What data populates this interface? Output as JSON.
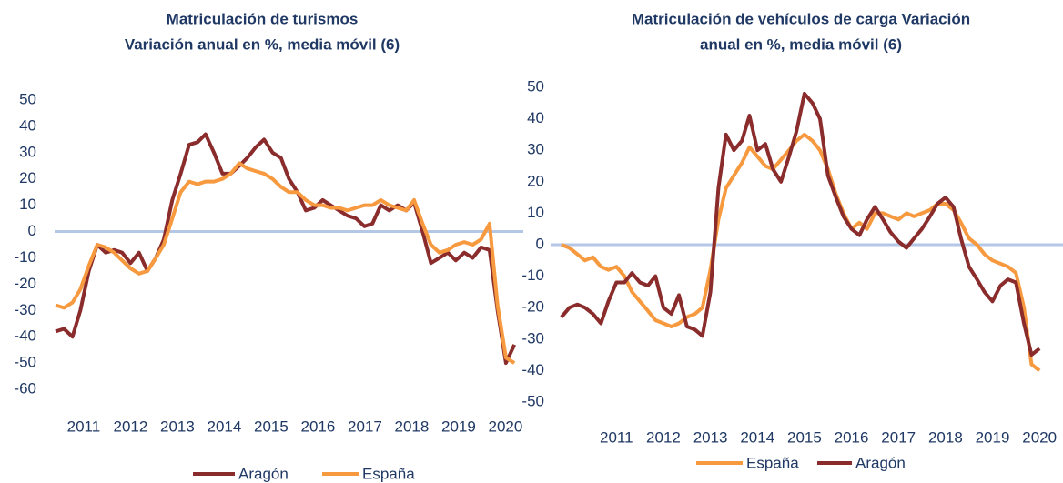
{
  "chart_data": [
    {
      "type": "line",
      "title": [
        "Matriculación de turismos",
        "Variación anual en %, media móvil (6)"
      ],
      "x": [
        2010.4,
        2010.58,
        2010.76,
        2010.93,
        2011.11,
        2011.29,
        2011.47,
        2011.65,
        2011.82,
        2012.0,
        2012.18,
        2012.36,
        2012.54,
        2012.71,
        2012.89,
        2013.07,
        2013.25,
        2013.43,
        2013.6,
        2013.78,
        2013.96,
        2014.14,
        2014.32,
        2014.49,
        2014.67,
        2014.85,
        2015.03,
        2015.21,
        2015.38,
        2015.56,
        2015.74,
        2015.92,
        2016.1,
        2016.27,
        2016.45,
        2016.63,
        2016.81,
        2016.99,
        2017.16,
        2017.34,
        2017.52,
        2017.7,
        2017.88,
        2018.05,
        2018.23,
        2018.41,
        2018.59,
        2018.77,
        2018.94,
        2019.12,
        2019.3,
        2019.48,
        2019.66,
        2019.83,
        2020.01,
        2020.19
      ],
      "series": [
        {
          "name": "Aragón",
          "color": "#8b2c2c",
          "values": [
            -38,
            -37,
            -40,
            -30,
            -15,
            -5,
            -8,
            -7,
            -8,
            -12,
            -8,
            -15,
            -10,
            -3,
            12,
            22,
            33,
            34,
            37,
            30,
            22,
            22,
            25,
            28,
            32,
            35,
            30,
            28,
            20,
            15,
            8,
            9,
            12,
            10,
            8,
            6,
            5,
            2,
            3,
            10,
            8,
            10,
            8,
            11,
            0,
            -12,
            -10,
            -8,
            -11,
            -8,
            -10,
            -6,
            -7,
            -30,
            -50,
            -43
          ]
        },
        {
          "name": "España",
          "color": "#f7993f",
          "values": [
            -28,
            -29,
            -27,
            -22,
            -13,
            -5,
            -6,
            -8,
            -11,
            -14,
            -16,
            -15,
            -10,
            -5,
            5,
            15,
            19,
            18,
            19,
            19,
            20,
            22,
            26,
            24,
            23,
            22,
            20,
            17,
            15,
            15,
            12,
            10,
            10,
            9,
            9,
            8,
            9,
            10,
            10,
            12,
            10,
            9,
            8,
            12,
            3,
            -5,
            -8,
            -7,
            -5,
            -4,
            -5,
            -3,
            3,
            -28,
            -48,
            -50
          ]
        }
      ],
      "xlim": [
        2010.38,
        2020.38
      ],
      "xticks": [
        2011,
        2012,
        2013,
        2014,
        2015,
        2016,
        2017,
        2018,
        2019,
        2020
      ],
      "ylim": [
        -60,
        50
      ],
      "yticks": [
        -60,
        -50,
        -40,
        -30,
        -20,
        -10,
        0,
        10,
        20,
        30,
        40,
        50
      ]
    },
    {
      "type": "line",
      "title": [
        "Matriculación  de vehículos de carga Variación",
        "anual en %, media móvil (6)"
      ],
      "x": [
        2009.83,
        2010.0,
        2010.17,
        2010.33,
        2010.5,
        2010.67,
        2010.83,
        2011.0,
        2011.17,
        2011.33,
        2011.5,
        2011.67,
        2011.83,
        2012.0,
        2012.17,
        2012.33,
        2012.5,
        2012.67,
        2012.83,
        2013.0,
        2013.17,
        2013.33,
        2013.5,
        2013.67,
        2013.83,
        2014.0,
        2014.17,
        2014.33,
        2014.5,
        2014.67,
        2014.83,
        2015.0,
        2015.17,
        2015.33,
        2015.5,
        2015.67,
        2015.83,
        2016.0,
        2016.17,
        2016.33,
        2016.5,
        2016.67,
        2016.83,
        2017.0,
        2017.17,
        2017.33,
        2017.5,
        2017.67,
        2017.83,
        2018.0,
        2018.17,
        2018.33,
        2018.5,
        2018.67,
        2018.83,
        2019.0,
        2019.17,
        2019.33,
        2019.5,
        2019.67,
        2019.83,
        2020.0
      ],
      "series": [
        {
          "name": "España",
          "color": "#f7993f",
          "values": [
            0,
            -1,
            -3,
            -5,
            -4,
            -7,
            -8,
            -7,
            -10,
            -15,
            -18,
            -21,
            -24,
            -25,
            -26,
            -25,
            -23,
            -22,
            -20,
            -8,
            8,
            18,
            22,
            26,
            31,
            28,
            25,
            24,
            27,
            30,
            33,
            35,
            33,
            30,
            24,
            16,
            10,
            5,
            7,
            5,
            10,
            10,
            9,
            8,
            10,
            9,
            10,
            11,
            13,
            13,
            11,
            7,
            2,
            0,
            -3,
            -5,
            -6,
            -7,
            -9,
            -20,
            -38,
            -40
          ]
        },
        {
          "name": "Aragón",
          "color": "#8b2c2c",
          "values": [
            -23,
            -20,
            -19,
            -20,
            -22,
            -25,
            -18,
            -12,
            -12,
            -9,
            -12,
            -13,
            -10,
            -20,
            -22,
            -16,
            -26,
            -27,
            -29,
            -15,
            18,
            35,
            30,
            33,
            41,
            30,
            32,
            24,
            20,
            28,
            36,
            48,
            45,
            40,
            22,
            15,
            9,
            5,
            3,
            8,
            12,
            8,
            4,
            1,
            -1,
            2,
            5,
            9,
            13,
            15,
            12,
            2,
            -7,
            -11,
            -15,
            -18,
            -13,
            -11,
            -12,
            -25,
            -35,
            -33
          ]
        }
      ],
      "xlim": [
        2009.6,
        2020.5
      ],
      "xticks": [
        2011,
        2012,
        2013,
        2014,
        2015,
        2016,
        2017,
        2018,
        2019,
        2020
      ],
      "ylim": [
        -50,
        50
      ],
      "yticks": [
        -50,
        -40,
        -30,
        -20,
        -10,
        0,
        10,
        20,
        30,
        40,
        50
      ]
    }
  ]
}
